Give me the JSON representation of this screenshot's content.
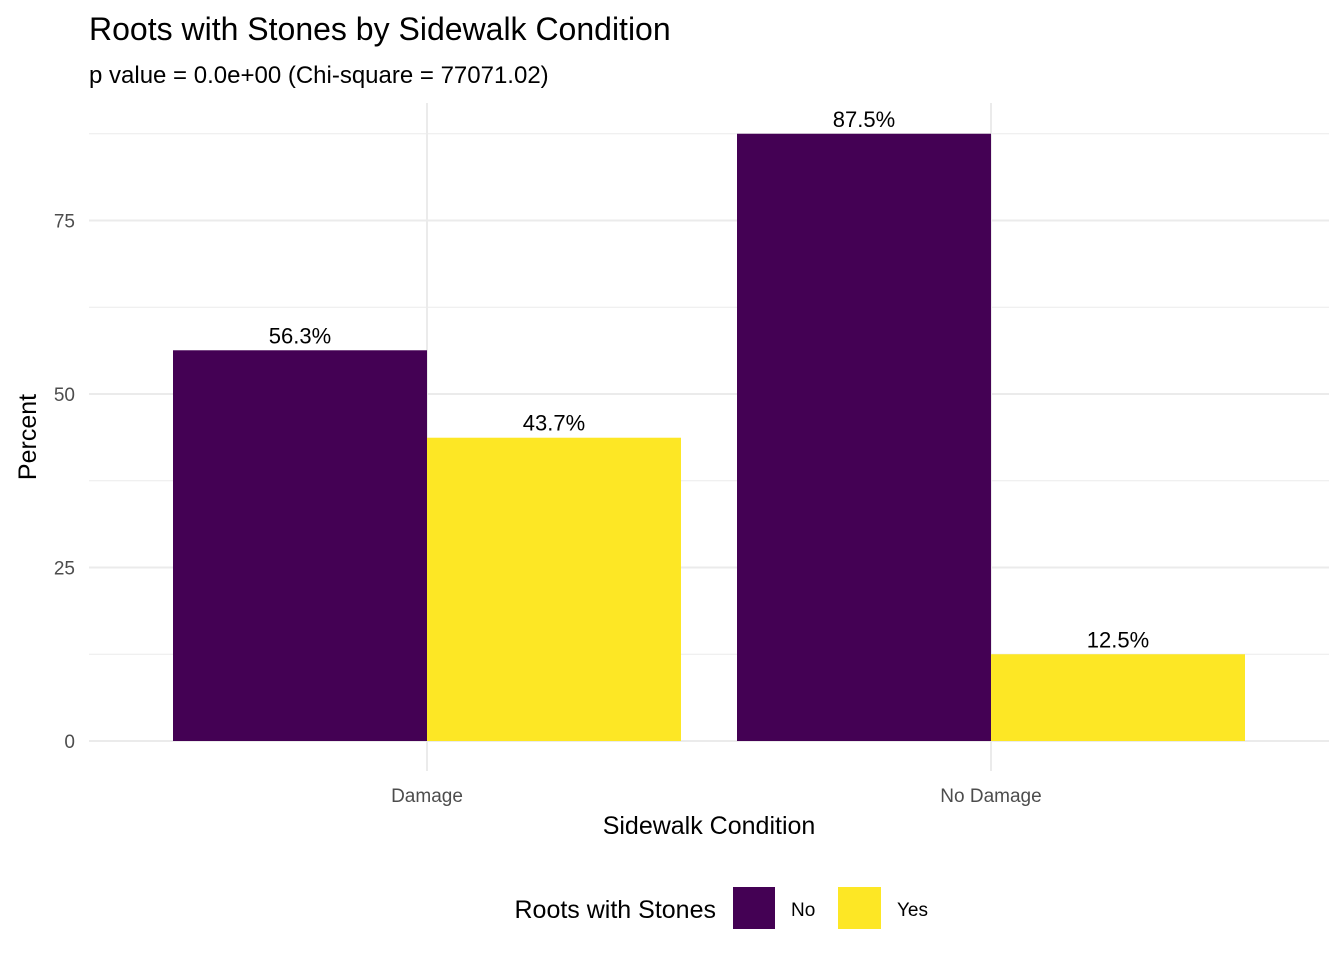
{
  "chart_data": {
    "type": "bar",
    "title": "Roots with Stones by Sidewalk Condition",
    "subtitle": "p value = 0.0e+00 (Chi-square = 77071.02)",
    "xlabel": "Sidewalk Condition",
    "ylabel": "Percent",
    "categories": [
      "Damage",
      "No Damage"
    ],
    "series": [
      {
        "name": "No",
        "color": "#440154",
        "values": [
          56.3,
          87.5
        ],
        "labels": [
          "56.3%",
          "87.5%"
        ]
      },
      {
        "name": "Yes",
        "color": "#FDE725",
        "values": [
          43.7,
          12.5
        ],
        "labels": [
          "43.7%",
          "12.5%"
        ]
      }
    ],
    "yticks": [
      0,
      25,
      50,
      75
    ],
    "ylim": [
      -2.4,
      91.9
    ],
    "grid": true,
    "legend": {
      "title": "Roots with Stones",
      "position": "bottom"
    }
  }
}
